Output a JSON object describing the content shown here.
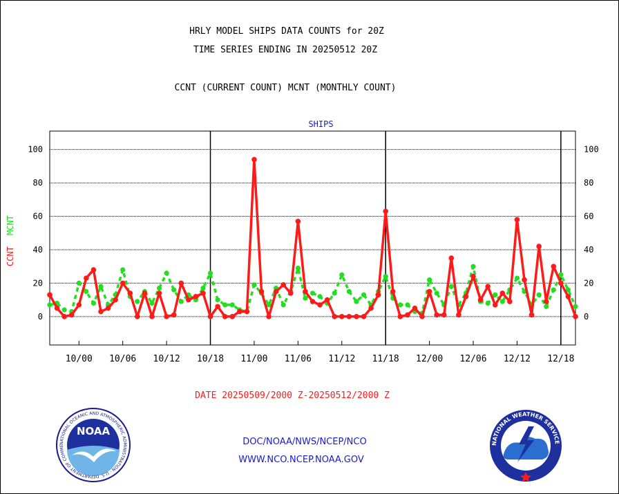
{
  "header": {
    "title_line1": "HRLY MODEL SHIPS DATA COUNTS for 20Z",
    "title_line2": "TIME SERIES ENDING IN 20250512 20Z",
    "subtitle": "CCNT (CURRENT COUNT) MCNT (MONTHLY COUNT)"
  },
  "footer": {
    "date_range": "DATE 20250509/2000 Z-20250512/2000 Z",
    "org_line": "DOC/NOAA/NWS/NCEP/NCO",
    "url_line": "WWW.NCO.NCEP.NOAA.GOV"
  },
  "logos": {
    "noaa_text": "NOAA",
    "noaa_ring": "NATIONAL OCEANIC AND ATMOSPHERIC ADMINISTRATION · U.S. DEPARTMENT OF COMMERCE",
    "nws_ring": "NATIONAL WEATHER SERVICE"
  },
  "colors": {
    "ccnt": "#ff1a1a",
    "mcnt": "#22dd22",
    "panel_title": "#1a1acc",
    "date_range": "#ff1a1a",
    "links": "#1a1acc"
  },
  "chart_data": {
    "type": "line",
    "panel_title": "SHIPS",
    "y_axis_label_ccnt": "CCNT",
    "y_axis_label_mcnt": "MCNT",
    "ylim": [
      -17,
      111
    ],
    "yticks": [
      0,
      20,
      40,
      60,
      80,
      100
    ],
    "grid": true,
    "x_tick_labels": [
      "10/00",
      "10/06",
      "10/12",
      "10/18",
      "11/00",
      "11/06",
      "11/12",
      "11/18",
      "12/00",
      "12/06",
      "12/12",
      "12/18"
    ],
    "x_tick_hours": [
      4,
      10,
      16,
      22,
      28,
      34,
      40,
      46,
      52,
      58,
      64,
      70
    ],
    "day_boundaries_hours": [
      22,
      46,
      70
    ],
    "x_hours_range": [
      0,
      72
    ],
    "series": [
      {
        "name": "CCNT",
        "color": "#ff1a1a",
        "x_hours": [
          0,
          1,
          2,
          3,
          4,
          5,
          6,
          7,
          8,
          9,
          10,
          11,
          12,
          13,
          14,
          15,
          16,
          17,
          18,
          19,
          20,
          21,
          22,
          23,
          24,
          25,
          26,
          27,
          28,
          29,
          30,
          31,
          32,
          33,
          34,
          35,
          36,
          37,
          38,
          39,
          40,
          41,
          42,
          43,
          44,
          45,
          46,
          47,
          48,
          49,
          50,
          51,
          52,
          53,
          54,
          55,
          56,
          57,
          58,
          59,
          60,
          61,
          62,
          63,
          64,
          65,
          66,
          67,
          68,
          69,
          70,
          71,
          72
        ],
        "values": [
          13,
          5,
          0,
          1,
          7,
          23,
          28,
          3,
          5,
          10,
          20,
          14,
          0,
          14,
          0,
          14,
          0,
          1,
          20,
          10,
          12,
          14,
          0,
          6,
          0,
          0,
          3,
          3,
          94,
          15,
          0,
          15,
          19,
          14,
          57,
          15,
          9,
          7,
          10,
          0,
          0,
          0,
          0,
          0,
          5,
          13,
          63,
          15,
          0,
          1,
          5,
          0,
          15,
          1,
          1,
          35,
          1,
          12,
          24,
          10,
          18,
          7,
          14,
          9,
          58,
          22,
          1,
          42,
          9,
          30,
          20,
          12,
          0
        ]
      },
      {
        "name": "MCNT",
        "color": "#22dd22",
        "x_hours": [
          0,
          1,
          2,
          3,
          4,
          5,
          6,
          7,
          8,
          9,
          10,
          11,
          12,
          13,
          14,
          15,
          16,
          17,
          18,
          19,
          20,
          21,
          22,
          23,
          24,
          25,
          26,
          27,
          28,
          29,
          30,
          31,
          32,
          33,
          34,
          35,
          36,
          37,
          38,
          39,
          40,
          41,
          42,
          43,
          44,
          45,
          46,
          47,
          48,
          49,
          50,
          51,
          52,
          53,
          54,
          55,
          56,
          57,
          58,
          59,
          60,
          61,
          62,
          63,
          64,
          65,
          66,
          67,
          68,
          69,
          70,
          71,
          72
        ],
        "values": [
          7,
          8,
          4,
          3,
          20,
          15,
          8,
          18,
          7,
          13,
          28,
          12,
          9,
          15,
          8,
          17,
          26,
          16,
          9,
          13,
          10,
          17,
          26,
          10,
          7,
          7,
          4,
          3,
          19,
          14,
          7,
          17,
          7,
          15,
          29,
          11,
          14,
          12,
          8,
          14,
          25,
          15,
          9,
          13,
          7,
          15,
          24,
          11,
          7,
          7,
          3,
          2,
          22,
          14,
          7,
          18,
          7,
          14,
          30,
          9,
          8,
          13,
          9,
          16,
          23,
          15,
          7,
          13,
          6,
          16,
          25,
          16,
          6
        ]
      }
    ]
  }
}
